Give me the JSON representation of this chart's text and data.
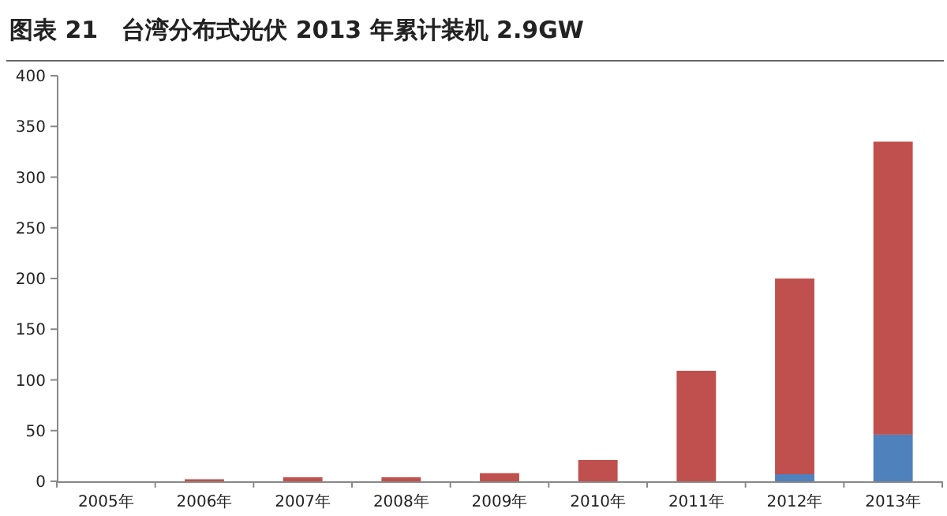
{
  "chart_data": {
    "type": "bar",
    "title": "图表 21　台湾分布式光伏 2013 年累计装机 2.9GW",
    "categories": [
      "2005年",
      "2006年",
      "2007年",
      "2008年",
      "2009年",
      "2010年",
      "2011年",
      "2012年",
      "2013年"
    ],
    "stacked": true,
    "series": [
      {
        "color": "#4f81bd",
        "values": [
          0,
          0,
          0,
          0,
          0,
          0,
          0,
          7,
          46
        ]
      },
      {
        "color": "#c0504d",
        "values": [
          0,
          2,
          4,
          4,
          8,
          21,
          109,
          193,
          289
        ]
      }
    ],
    "ylim": [
      0,
      400
    ],
    "yticks": [
      0,
      50,
      100,
      150,
      200,
      250,
      300,
      350,
      400
    ]
  }
}
